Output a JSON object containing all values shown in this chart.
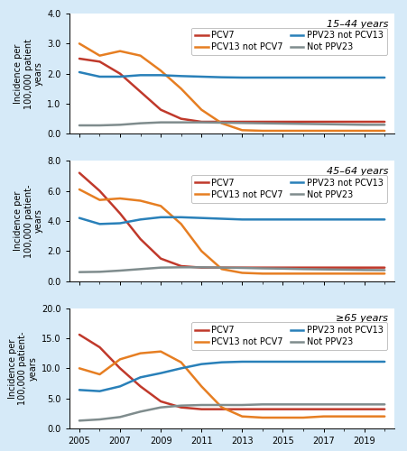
{
  "background_color": "#d6eaf8",
  "panel_bg": "#ffffff",
  "panels": [
    {
      "title": "15–44 years",
      "ylabel": "Incidence per\n100,000 patient\nyears",
      "ylim": [
        0,
        4.0
      ],
      "yticks": [
        0,
        1.0,
        2.0,
        3.0,
        4.0
      ],
      "series": {
        "PCV7": {
          "color": "#c0392b",
          "x": [
            2005,
            2006,
            2007,
            2008,
            2009,
            2010,
            2011,
            2012,
            2013,
            2014,
            2015,
            2016,
            2017,
            2018,
            2019,
            2020
          ],
          "y": [
            2.5,
            2.4,
            2.0,
            1.4,
            0.8,
            0.5,
            0.4,
            0.4,
            0.4,
            0.4,
            0.4,
            0.4,
            0.4,
            0.4,
            0.4,
            0.4
          ]
        },
        "PCV13 not PCV7": {
          "color": "#e67e22",
          "x": [
            2005,
            2006,
            2007,
            2008,
            2009,
            2010,
            2011,
            2012,
            2013,
            2014,
            2015,
            2016,
            2017,
            2018,
            2019,
            2020
          ],
          "y": [
            3.0,
            2.6,
            2.75,
            2.6,
            2.1,
            1.5,
            0.8,
            0.35,
            0.12,
            0.1,
            0.1,
            0.1,
            0.1,
            0.1,
            0.1,
            0.1
          ]
        },
        "PPV23 not PCV13": {
          "color": "#2980b9",
          "x": [
            2005,
            2006,
            2007,
            2008,
            2009,
            2010,
            2011,
            2012,
            2013,
            2014,
            2015,
            2016,
            2017,
            2018,
            2019,
            2020
          ],
          "y": [
            2.05,
            1.9,
            1.9,
            1.95,
            1.95,
            1.92,
            1.9,
            1.88,
            1.87,
            1.87,
            1.87,
            1.87,
            1.87,
            1.87,
            1.87,
            1.87
          ]
        },
        "Not PPV23": {
          "color": "#7f8c8d",
          "x": [
            2005,
            2006,
            2007,
            2008,
            2009,
            2010,
            2011,
            2012,
            2013,
            2014,
            2015,
            2016,
            2017,
            2018,
            2019,
            2020
          ],
          "y": [
            0.28,
            0.28,
            0.3,
            0.35,
            0.38,
            0.38,
            0.38,
            0.37,
            0.36,
            0.35,
            0.34,
            0.33,
            0.32,
            0.31,
            0.3,
            0.3
          ]
        }
      }
    },
    {
      "title": "45–64 years",
      "ylabel": "Incidence per\n100,000 patient-\nyears",
      "ylim": [
        0,
        8.0
      ],
      "yticks": [
        0,
        2.0,
        4.0,
        6.0,
        8.0
      ],
      "series": {
        "PCV7": {
          "color": "#c0392b",
          "x": [
            2005,
            2006,
            2007,
            2008,
            2009,
            2010,
            2011,
            2012,
            2013,
            2014,
            2015,
            2016,
            2017,
            2018,
            2019,
            2020
          ],
          "y": [
            7.2,
            6.0,
            4.5,
            2.8,
            1.5,
            1.0,
            0.9,
            0.9,
            0.9,
            0.9,
            0.9,
            0.9,
            0.9,
            0.9,
            0.9,
            0.9
          ]
        },
        "PCV13 not PCV7": {
          "color": "#e67e22",
          "x": [
            2005,
            2006,
            2007,
            2008,
            2009,
            2010,
            2011,
            2012,
            2013,
            2014,
            2015,
            2016,
            2017,
            2018,
            2019,
            2020
          ],
          "y": [
            6.1,
            5.4,
            5.5,
            5.35,
            5.0,
            3.8,
            2.0,
            0.8,
            0.55,
            0.5,
            0.5,
            0.5,
            0.5,
            0.5,
            0.5,
            0.5
          ]
        },
        "PPV23 not PCV13": {
          "color": "#2980b9",
          "x": [
            2005,
            2006,
            2007,
            2008,
            2009,
            2010,
            2011,
            2012,
            2013,
            2014,
            2015,
            2016,
            2017,
            2018,
            2019,
            2020
          ],
          "y": [
            4.2,
            3.8,
            3.85,
            4.1,
            4.25,
            4.25,
            4.2,
            4.15,
            4.1,
            4.1,
            4.1,
            4.1,
            4.1,
            4.1,
            4.1,
            4.1
          ]
        },
        "Not PPV23": {
          "color": "#7f8c8d",
          "x": [
            2005,
            2006,
            2007,
            2008,
            2009,
            2010,
            2011,
            2012,
            2013,
            2014,
            2015,
            2016,
            2017,
            2018,
            2019,
            2020
          ],
          "y": [
            0.6,
            0.62,
            0.7,
            0.8,
            0.9,
            0.92,
            0.92,
            0.9,
            0.88,
            0.85,
            0.83,
            0.8,
            0.78,
            0.76,
            0.74,
            0.73
          ]
        }
      }
    },
    {
      "title": "≥65 years",
      "ylabel": "Incidence per\n100,000 patient-\nyears",
      "ylim": [
        0,
        20.0
      ],
      "yticks": [
        0,
        5.0,
        10.0,
        15.0,
        20.0
      ],
      "series": {
        "PCV7": {
          "color": "#c0392b",
          "x": [
            2005,
            2006,
            2007,
            2008,
            2009,
            2010,
            2011,
            2012,
            2013,
            2014,
            2015,
            2016,
            2017,
            2018,
            2019,
            2020
          ],
          "y": [
            15.6,
            13.5,
            10.0,
            7.0,
            4.5,
            3.5,
            3.2,
            3.2,
            3.2,
            3.2,
            3.2,
            3.2,
            3.2,
            3.2,
            3.2,
            3.2
          ]
        },
        "PCV13 not PCV7": {
          "color": "#e67e22",
          "x": [
            2005,
            2006,
            2007,
            2008,
            2009,
            2010,
            2011,
            2012,
            2013,
            2014,
            2015,
            2016,
            2017,
            2018,
            2019,
            2020
          ],
          "y": [
            10.0,
            9.0,
            11.5,
            12.5,
            12.8,
            11.0,
            7.0,
            3.5,
            2.0,
            1.8,
            1.8,
            1.8,
            2.0,
            2.0,
            2.0,
            2.0
          ]
        },
        "PPV23 not PCV13": {
          "color": "#2980b9",
          "x": [
            2005,
            2006,
            2007,
            2008,
            2009,
            2010,
            2011,
            2012,
            2013,
            2014,
            2015,
            2016,
            2017,
            2018,
            2019,
            2020
          ],
          "y": [
            6.4,
            6.2,
            7.0,
            8.5,
            9.2,
            10.0,
            10.7,
            11.0,
            11.1,
            11.1,
            11.1,
            11.1,
            11.1,
            11.1,
            11.1,
            11.1
          ]
        },
        "Not PPV23": {
          "color": "#7f8c8d",
          "x": [
            2005,
            2006,
            2007,
            2008,
            2009,
            2010,
            2011,
            2012,
            2013,
            2014,
            2015,
            2016,
            2017,
            2018,
            2019,
            2020
          ],
          "y": [
            1.3,
            1.5,
            1.9,
            2.8,
            3.5,
            3.8,
            3.9,
            3.9,
            3.9,
            4.0,
            4.0,
            4.0,
            4.0,
            4.0,
            4.0,
            4.0
          ]
        }
      }
    }
  ],
  "legend_order": [
    "PCV7",
    "PCV13 not PCV7",
    "PPV23 not PCV13",
    "Not PPV23"
  ],
  "xticks": [
    2005,
    2007,
    2009,
    2011,
    2013,
    2015,
    2017,
    2019
  ],
  "xlim": [
    2004.5,
    2020.5
  ],
  "linewidth": 1.8,
  "fontsize_tick": 7,
  "fontsize_label": 7,
  "fontsize_title": 8,
  "fontsize_legend": 7
}
